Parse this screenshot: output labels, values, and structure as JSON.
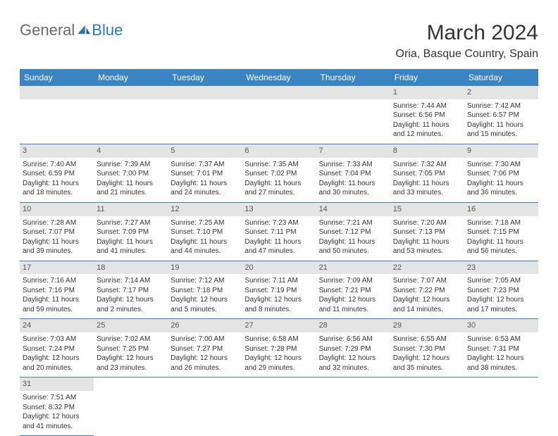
{
  "logo": {
    "text1": "General",
    "text2": "Blue"
  },
  "title": "March 2024",
  "location": "Oria, Basque Country, Spain",
  "colors": {
    "header_bg": "#3b84c4",
    "header_fg": "#ffffff",
    "daynum_bg": "#e4e4e4",
    "border": "#3b84c4"
  },
  "font": {
    "title_size": 30,
    "location_size": 16,
    "header_size": 12,
    "cell_size": 10
  },
  "weekdays": [
    "Sunday",
    "Monday",
    "Tuesday",
    "Wednesday",
    "Thursday",
    "Friday",
    "Saturday"
  ],
  "weeks": [
    [
      null,
      null,
      null,
      null,
      null,
      {
        "n": "1",
        "sr": "Sunrise: 7:44 AM",
        "ss": "Sunset: 6:56 PM",
        "dl1": "Daylight: 11 hours",
        "dl2": "and 12 minutes."
      },
      {
        "n": "2",
        "sr": "Sunrise: 7:42 AM",
        "ss": "Sunset: 6:57 PM",
        "dl1": "Daylight: 11 hours",
        "dl2": "and 15 minutes."
      }
    ],
    [
      {
        "n": "3",
        "sr": "Sunrise: 7:40 AM",
        "ss": "Sunset: 6:59 PM",
        "dl1": "Daylight: 11 hours",
        "dl2": "and 18 minutes."
      },
      {
        "n": "4",
        "sr": "Sunrise: 7:39 AM",
        "ss": "Sunset: 7:00 PM",
        "dl1": "Daylight: 11 hours",
        "dl2": "and 21 minutes."
      },
      {
        "n": "5",
        "sr": "Sunrise: 7:37 AM",
        "ss": "Sunset: 7:01 PM",
        "dl1": "Daylight: 11 hours",
        "dl2": "and 24 minutes."
      },
      {
        "n": "6",
        "sr": "Sunrise: 7:35 AM",
        "ss": "Sunset: 7:02 PM",
        "dl1": "Daylight: 11 hours",
        "dl2": "and 27 minutes."
      },
      {
        "n": "7",
        "sr": "Sunrise: 7:33 AM",
        "ss": "Sunset: 7:04 PM",
        "dl1": "Daylight: 11 hours",
        "dl2": "and 30 minutes."
      },
      {
        "n": "8",
        "sr": "Sunrise: 7:32 AM",
        "ss": "Sunset: 7:05 PM",
        "dl1": "Daylight: 11 hours",
        "dl2": "and 33 minutes."
      },
      {
        "n": "9",
        "sr": "Sunrise: 7:30 AM",
        "ss": "Sunset: 7:06 PM",
        "dl1": "Daylight: 11 hours",
        "dl2": "and 36 minutes."
      }
    ],
    [
      {
        "n": "10",
        "sr": "Sunrise: 7:28 AM",
        "ss": "Sunset: 7:07 PM",
        "dl1": "Daylight: 11 hours",
        "dl2": "and 39 minutes."
      },
      {
        "n": "11",
        "sr": "Sunrise: 7:27 AM",
        "ss": "Sunset: 7:09 PM",
        "dl1": "Daylight: 11 hours",
        "dl2": "and 41 minutes."
      },
      {
        "n": "12",
        "sr": "Sunrise: 7:25 AM",
        "ss": "Sunset: 7:10 PM",
        "dl1": "Daylight: 11 hours",
        "dl2": "and 44 minutes."
      },
      {
        "n": "13",
        "sr": "Sunrise: 7:23 AM",
        "ss": "Sunset: 7:11 PM",
        "dl1": "Daylight: 11 hours",
        "dl2": "and 47 minutes."
      },
      {
        "n": "14",
        "sr": "Sunrise: 7:21 AM",
        "ss": "Sunset: 7:12 PM",
        "dl1": "Daylight: 11 hours",
        "dl2": "and 50 minutes."
      },
      {
        "n": "15",
        "sr": "Sunrise: 7:20 AM",
        "ss": "Sunset: 7:13 PM",
        "dl1": "Daylight: 11 hours",
        "dl2": "and 53 minutes."
      },
      {
        "n": "16",
        "sr": "Sunrise: 7:18 AM",
        "ss": "Sunset: 7:15 PM",
        "dl1": "Daylight: 11 hours",
        "dl2": "and 56 minutes."
      }
    ],
    [
      {
        "n": "17",
        "sr": "Sunrise: 7:16 AM",
        "ss": "Sunset: 7:16 PM",
        "dl1": "Daylight: 11 hours",
        "dl2": "and 59 minutes."
      },
      {
        "n": "18",
        "sr": "Sunrise: 7:14 AM",
        "ss": "Sunset: 7:17 PM",
        "dl1": "Daylight: 12 hours",
        "dl2": "and 2 minutes."
      },
      {
        "n": "19",
        "sr": "Sunrise: 7:12 AM",
        "ss": "Sunset: 7:18 PM",
        "dl1": "Daylight: 12 hours",
        "dl2": "and 5 minutes."
      },
      {
        "n": "20",
        "sr": "Sunrise: 7:11 AM",
        "ss": "Sunset: 7:19 PM",
        "dl1": "Daylight: 12 hours",
        "dl2": "and 8 minutes."
      },
      {
        "n": "21",
        "sr": "Sunrise: 7:09 AM",
        "ss": "Sunset: 7:21 PM",
        "dl1": "Daylight: 12 hours",
        "dl2": "and 11 minutes."
      },
      {
        "n": "22",
        "sr": "Sunrise: 7:07 AM",
        "ss": "Sunset: 7:22 PM",
        "dl1": "Daylight: 12 hours",
        "dl2": "and 14 minutes."
      },
      {
        "n": "23",
        "sr": "Sunrise: 7:05 AM",
        "ss": "Sunset: 7:23 PM",
        "dl1": "Daylight: 12 hours",
        "dl2": "and 17 minutes."
      }
    ],
    [
      {
        "n": "24",
        "sr": "Sunrise: 7:03 AM",
        "ss": "Sunset: 7:24 PM",
        "dl1": "Daylight: 12 hours",
        "dl2": "and 20 minutes."
      },
      {
        "n": "25",
        "sr": "Sunrise: 7:02 AM",
        "ss": "Sunset: 7:25 PM",
        "dl1": "Daylight: 12 hours",
        "dl2": "and 23 minutes."
      },
      {
        "n": "26",
        "sr": "Sunrise: 7:00 AM",
        "ss": "Sunset: 7:27 PM",
        "dl1": "Daylight: 12 hours",
        "dl2": "and 26 minutes."
      },
      {
        "n": "27",
        "sr": "Sunrise: 6:58 AM",
        "ss": "Sunset: 7:28 PM",
        "dl1": "Daylight: 12 hours",
        "dl2": "and 29 minutes."
      },
      {
        "n": "28",
        "sr": "Sunrise: 6:56 AM",
        "ss": "Sunset: 7:29 PM",
        "dl1": "Daylight: 12 hours",
        "dl2": "and 32 minutes."
      },
      {
        "n": "29",
        "sr": "Sunrise: 6:55 AM",
        "ss": "Sunset: 7:30 PM",
        "dl1": "Daylight: 12 hours",
        "dl2": "and 35 minutes."
      },
      {
        "n": "30",
        "sr": "Sunrise: 6:53 AM",
        "ss": "Sunset: 7:31 PM",
        "dl1": "Daylight: 12 hours",
        "dl2": "and 38 minutes."
      }
    ],
    [
      {
        "n": "31",
        "sr": "Sunrise: 7:51 AM",
        "ss": "Sunset: 8:32 PM",
        "dl1": "Daylight: 12 hours",
        "dl2": "and 41 minutes."
      },
      null,
      null,
      null,
      null,
      null,
      null
    ]
  ]
}
